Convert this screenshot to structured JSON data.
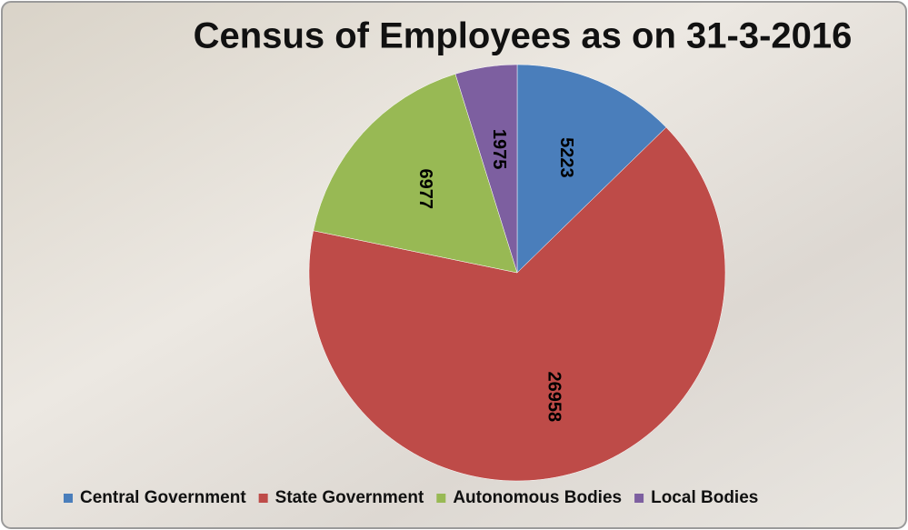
{
  "chart_data": {
    "type": "pie",
    "title": "Census of Employees as on 31-3-2016",
    "categories": [
      "Central Government",
      "State Government",
      "Autonomous Bodies",
      "Local Bodies"
    ],
    "values": [
      5223,
      26958,
      6977,
      1975
    ],
    "colors": [
      "#4a7ebb",
      "#be4b48",
      "#98b954",
      "#7d5fa0"
    ],
    "legend": "bottom"
  }
}
